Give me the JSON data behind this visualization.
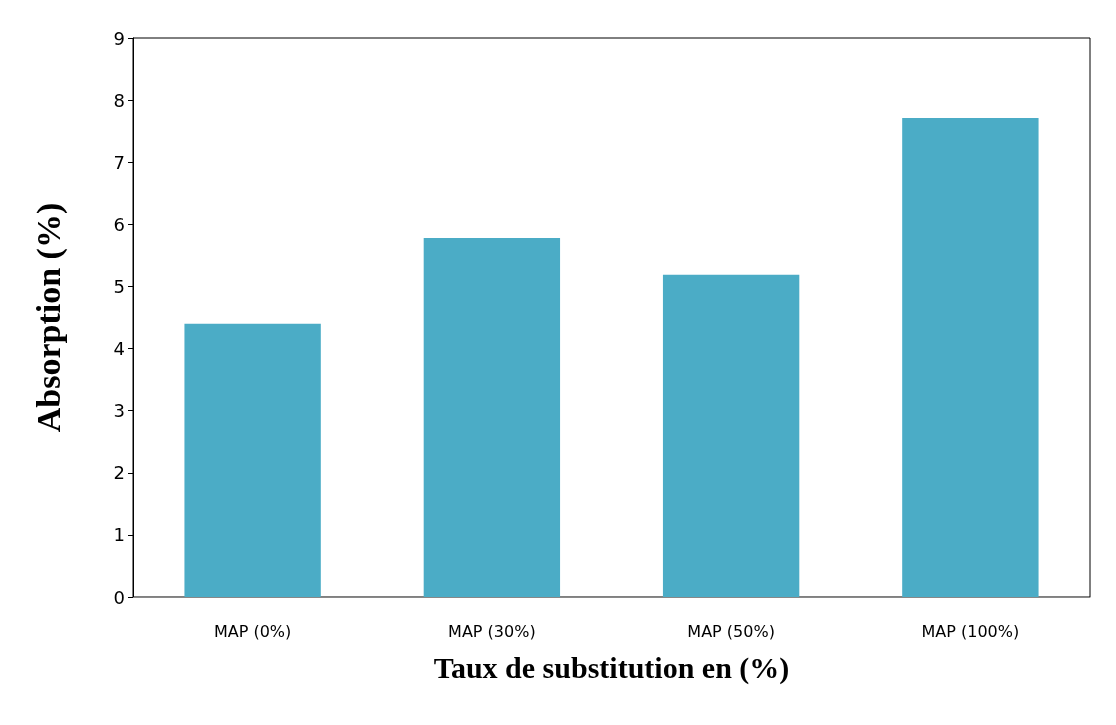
{
  "chart_data": {
    "type": "bar",
    "xlabel": "Taux de substitution en (%)",
    "ylabel": "Absorption (%)",
    "categories": [
      "MAP (0%)",
      "MAP (30%)",
      "MAP (50%)",
      "MAP (100%)"
    ],
    "values": [
      4.4,
      5.78,
      5.19,
      7.71
    ],
    "color": "#4bacc6",
    "ylim": [
      0,
      9
    ],
    "yticks": [
      0,
      1,
      2,
      3,
      4,
      5,
      6,
      7,
      8,
      9
    ],
    "grid": false
  }
}
